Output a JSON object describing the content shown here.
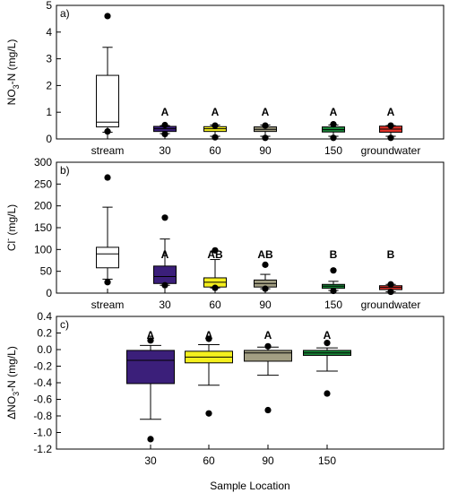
{
  "chart_data": [
    {
      "panel_label": "a)",
      "type": "box",
      "ylabel": "NO3-N (mg/L)",
      "ylabel_main": "NO",
      "ylabel_sub": "3",
      "ylabel_rest": "-N (mg/L)",
      "ylim": [
        0,
        5
      ],
      "yticks": [
        0,
        1,
        2,
        3,
        4,
        5
      ],
      "categories": [
        "stream",
        "30",
        "60",
        "90",
        "150",
        "groundwater"
      ],
      "boxes": [
        {
          "category": "stream",
          "color": "#ffffff",
          "q1": 0.45,
          "median": 0.63,
          "q3": 2.38,
          "whisker_low": 0.25,
          "whisker_high": 3.43,
          "outliers": [
            4.6,
            0.28
          ],
          "letter": ""
        },
        {
          "category": "30",
          "color": "#3b1f7a",
          "q1": 0.28,
          "median": 0.38,
          "q3": 0.47,
          "whisker_low": 0.2,
          "whisker_high": 0.5,
          "outliers": [
            0.52,
            0.18
          ],
          "letter": "A"
        },
        {
          "category": "60",
          "color": "#f5f01e",
          "q1": 0.28,
          "median": 0.38,
          "q3": 0.46,
          "whisker_low": 0.1,
          "whisker_high": 0.52,
          "outliers": [
            0.5,
            0.06
          ],
          "letter": "A"
        },
        {
          "category": "90",
          "color": "#a39f83",
          "q1": 0.28,
          "median": 0.36,
          "q3": 0.45,
          "whisker_low": 0.1,
          "whisker_high": 0.52,
          "outliers": [
            0.5,
            0.04
          ],
          "letter": "A"
        },
        {
          "category": "150",
          "color": "#1a8a3a",
          "q1": 0.26,
          "median": 0.35,
          "q3": 0.45,
          "whisker_low": 0.1,
          "whisker_high": 0.52,
          "outliers": [
            0.55,
            0.04
          ],
          "letter": "A"
        },
        {
          "category": "groundwater",
          "color": "#e0332a",
          "q1": 0.25,
          "median": 0.37,
          "q3": 0.48,
          "whisker_low": 0.1,
          "whisker_high": 0.5,
          "outliers": [
            0.5,
            0.04
          ],
          "letter": "A"
        }
      ]
    },
    {
      "panel_label": "b)",
      "type": "box",
      "ylabel": "Cl- (mg/L)",
      "ylabel_main": "Cl",
      "ylabel_sup": "-",
      "ylabel_rest": " (mg/L)",
      "ylim": [
        0,
        300
      ],
      "yticks": [
        0,
        50,
        100,
        150,
        200,
        250,
        300
      ],
      "categories": [
        "stream",
        "30",
        "60",
        "90",
        "150",
        "groundwater"
      ],
      "boxes": [
        {
          "category": "stream",
          "color": "#ffffff",
          "q1": 58,
          "median": 90,
          "q3": 105,
          "whisker_low": 32,
          "whisker_high": 197,
          "outliers": [
            265,
            25
          ],
          "letter": ""
        },
        {
          "category": "30",
          "color": "#3b1f7a",
          "q1": 22,
          "median": 38,
          "q3": 62,
          "whisker_low": 18,
          "whisker_high": 124,
          "outliers": [
            173,
            18
          ],
          "letter": "A"
        },
        {
          "category": "60",
          "color": "#f5f01e",
          "q1": 14,
          "median": 25,
          "q3": 35,
          "whisker_low": 12,
          "whisker_high": 77,
          "outliers": [
            98,
            12
          ],
          "letter": "AB"
        },
        {
          "category": "90",
          "color": "#a39f83",
          "q1": 14,
          "median": 22,
          "q3": 30,
          "whisker_low": 10,
          "whisker_high": 43,
          "outliers": [
            65,
            10
          ],
          "letter": "AB"
        },
        {
          "category": "150",
          "color": "#1a8a3a",
          "q1": 11,
          "median": 16,
          "q3": 20,
          "whisker_low": 6,
          "whisker_high": 27,
          "outliers": [
            52,
            5
          ],
          "letter": "B"
        },
        {
          "category": "groundwater",
          "color": "#e0332a",
          "q1": 8,
          "median": 13,
          "q3": 17,
          "whisker_low": 3,
          "whisker_high": 20,
          "outliers": [
            20,
            3
          ],
          "letter": "B"
        }
      ]
    },
    {
      "panel_label": "c)",
      "type": "box",
      "ylabel": "ΔNO3-N (mg/L)",
      "ylabel_main": "ΔNO",
      "ylabel_sub": "3",
      "ylabel_rest": "-N (mg/L)",
      "xlabel": "Sample Location",
      "ylim": [
        -1.2,
        0.4
      ],
      "yticks": [
        -1.2,
        -1.0,
        -0.8,
        -0.6,
        -0.4,
        -0.2,
        0.0,
        0.2,
        0.4
      ],
      "ytick_labels": [
        "-1.2",
        "-1.0",
        "-0.8",
        "-0.6",
        "-0.4",
        "-0.2",
        "0.0",
        "0.2",
        "0.4"
      ],
      "categories": [
        "30",
        "60",
        "90",
        "150"
      ],
      "boxes": [
        {
          "category": "30",
          "color": "#3b1f7a",
          "q1": -0.41,
          "median": -0.13,
          "q3": -0.01,
          "whisker_low": -0.84,
          "whisker_high": 0.05,
          "outliers": [
            0.11,
            -1.08
          ],
          "letter": "A"
        },
        {
          "category": "60",
          "color": "#f5f01e",
          "q1": -0.16,
          "median": -0.09,
          "q3": -0.02,
          "whisker_low": -0.43,
          "whisker_high": 0.06,
          "outliers": [
            0.13,
            -0.77
          ],
          "letter": "A"
        },
        {
          "category": "90",
          "color": "#a39f83",
          "q1": -0.14,
          "median": -0.04,
          "q3": -0.01,
          "whisker_low": -0.31,
          "whisker_high": 0.03,
          "outliers": [
            0.04,
            -0.73
          ],
          "letter": "A"
        },
        {
          "category": "150",
          "color": "#1a8a3a",
          "q1": -0.07,
          "median": -0.04,
          "q3": -0.01,
          "whisker_low": -0.26,
          "whisker_high": 0.02,
          "outliers": [
            0.08,
            -0.53
          ],
          "letter": "A"
        }
      ]
    }
  ]
}
